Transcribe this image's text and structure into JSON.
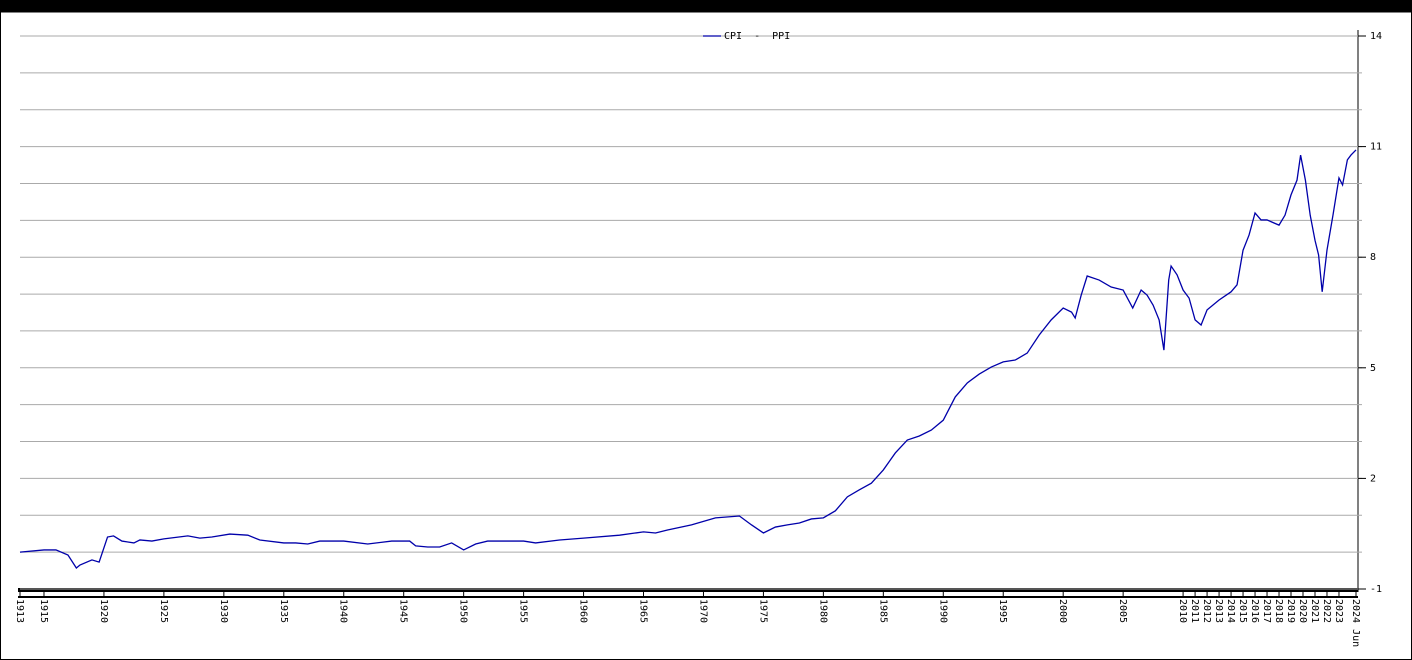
{
  "chart_data": {
    "type": "line",
    "series": [
      {
        "name": "CPI  -  PPI",
        "color": "#0000aa",
        "x": [
          1913,
          1915,
          1916,
          1917,
          1917.7,
          1918,
          1919,
          1919.6,
          1920.3,
          1920.8,
          1921.5,
          1922.5,
          1923,
          1924,
          1925,
          1927,
          1928,
          1929,
          1930.5,
          1932,
          1933,
          1935,
          1936,
          1937,
          1938,
          1940,
          1942,
          1944,
          1945.5,
          1946,
          1947,
          1948,
          1949,
          1950,
          1951,
          1952,
          1955,
          1956,
          1958,
          1960,
          1963,
          1965,
          1966,
          1967,
          1969,
          1971,
          1973,
          1974,
          1975,
          1976,
          1977,
          1978,
          1979,
          1980,
          1981,
          1982,
          1983,
          1984,
          1985,
          1986,
          1987,
          1988,
          1989,
          1990,
          1991,
          1992,
          1993,
          1994,
          1995,
          1996,
          1997,
          1998,
          1999,
          2000,
          2000.7,
          2001,
          2001.5,
          2002,
          2003,
          2004,
          2005,
          2005.8,
          2006.5,
          2007,
          2007.5,
          2008,
          2008.4,
          2008.8,
          2009,
          2009.5,
          2010,
          2010.5,
          2011,
          2011.5,
          2012,
          2013,
          2014,
          2014.5,
          2015,
          2015.5,
          2016,
          2016.5,
          2017,
          2018,
          2018.5,
          2019,
          2019.5,
          2019.8,
          2020.2,
          2020.6,
          2021,
          2021.3,
          2021.6,
          2022,
          2022.5,
          2023,
          2023.3,
          2023.7,
          2024,
          2024.42
        ],
        "values": [
          0.0,
          0.06,
          0.06,
          -0.08,
          -0.43,
          -0.35,
          -0.21,
          -0.27,
          0.41,
          0.44,
          0.3,
          0.25,
          0.33,
          0.3,
          0.36,
          0.44,
          0.38,
          0.41,
          0.49,
          0.46,
          0.33,
          0.25,
          0.25,
          0.22,
          0.3,
          0.3,
          0.22,
          0.3,
          0.3,
          0.17,
          0.14,
          0.14,
          0.25,
          0.06,
          0.22,
          0.3,
          0.3,
          0.25,
          0.33,
          0.38,
          0.46,
          0.55,
          0.52,
          0.6,
          0.74,
          0.93,
          0.98,
          0.74,
          0.52,
          0.68,
          0.74,
          0.79,
          0.9,
          0.93,
          1.12,
          1.5,
          1.69,
          1.87,
          2.23,
          2.69,
          3.04,
          3.15,
          3.31,
          3.58,
          4.21,
          4.59,
          4.83,
          5.02,
          5.16,
          5.21,
          5.4,
          5.89,
          6.3,
          6.62,
          6.51,
          6.35,
          6.97,
          7.49,
          7.38,
          7.19,
          7.11,
          6.62,
          7.11,
          6.97,
          6.7,
          6.3,
          5.48,
          7.38,
          7.76,
          7.52,
          7.11,
          6.89,
          6.3,
          6.16,
          6.57,
          6.84,
          7.06,
          7.25,
          8.19,
          8.6,
          9.2,
          9.01,
          9.01,
          8.87,
          9.14,
          9.69,
          10.09,
          10.77,
          10.09,
          9.14,
          8.46,
          8.06,
          7.06,
          8.19,
          9.14,
          10.15,
          9.96,
          10.64,
          10.77,
          10.91
        ]
      }
    ],
    "xlim": [
      1913,
      2024.42
    ],
    "xticks": [
      1913,
      1915,
      1920,
      1925,
      1930,
      1935,
      1940,
      1945,
      1950,
      1955,
      1960,
      1965,
      1970,
      1975,
      1980,
      1985,
      1990,
      1995,
      2000,
      2005,
      2010,
      2011,
      2012,
      2013,
      2014,
      2015,
      2016,
      2017,
      2018,
      2019,
      2020,
      2021,
      2022,
      2023,
      {
        "value": 2024.42,
        "label": "2024 Jun"
      }
    ],
    "ylim": [
      -1,
      14
    ],
    "yticks": [
      -1,
      2,
      5,
      8,
      11,
      14
    ],
    "minor_yticks": [
      0,
      1,
      3,
      4,
      6,
      7,
      9,
      10,
      12,
      13
    ],
    "grid": true,
    "legend": "top"
  }
}
